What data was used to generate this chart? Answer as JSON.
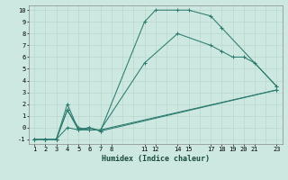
{
  "xlabel": "Humidex (Indice chaleur)",
  "bg_color": "#cce8e0",
  "grid_color": "#b8d8cc",
  "line_color": "#2d7a6e",
  "xlim": [
    0.5,
    23.5
  ],
  "ylim": [
    -1.4,
    10.4
  ],
  "xtick_positions": [
    1,
    2,
    3,
    4,
    5,
    6,
    7,
    8,
    11,
    12,
    14,
    15,
    17,
    18,
    19,
    20,
    21,
    23
  ],
  "xtick_labels": [
    "1",
    "2",
    "3",
    "4",
    "5",
    "6",
    "7",
    "8",
    "11",
    "12",
    "14",
    "15",
    "17",
    "18",
    "19",
    "20",
    "21",
    "23"
  ],
  "ytick_positions": [
    -1,
    0,
    1,
    2,
    3,
    4,
    5,
    6,
    7,
    8,
    9,
    10
  ],
  "ytick_labels": [
    "-1",
    "0",
    "1",
    "2",
    "3",
    "4",
    "5",
    "6",
    "7",
    "8",
    "9",
    "10"
  ],
  "grid_xticks": [
    1,
    2,
    3,
    4,
    5,
    6,
    7,
    8,
    9,
    10,
    11,
    12,
    13,
    14,
    15,
    16,
    17,
    18,
    19,
    20,
    21,
    22,
    23
  ],
  "line1_x": [
    1,
    2,
    3,
    4,
    5,
    6,
    7,
    11,
    12,
    14,
    15,
    17,
    18,
    23
  ],
  "line1_y": [
    -1,
    -1,
    -1,
    2,
    -0.2,
    0.0,
    -0.3,
    9.0,
    10.0,
    10.0,
    10.0,
    9.5,
    8.5,
    3.5
  ],
  "line2_x": [
    1,
    2,
    3,
    4,
    5,
    6,
    7,
    11,
    14,
    17,
    18,
    19,
    20,
    21,
    23
  ],
  "line2_y": [
    -1,
    -1,
    -1,
    1.5,
    0.0,
    -0.2,
    -0.2,
    5.5,
    8.0,
    7.0,
    6.5,
    6.0,
    6.0,
    5.5,
    3.5
  ],
  "line3_x": [
    1,
    2,
    3,
    4,
    5,
    6,
    7,
    23
  ],
  "line3_y": [
    -1,
    -1,
    -1,
    1.5,
    -0.2,
    0.0,
    -0.3,
    3.2
  ],
  "line4_x": [
    1,
    2,
    3,
    4,
    5,
    6,
    7,
    23
  ],
  "line4_y": [
    -1,
    -1,
    -1,
    0.0,
    -0.2,
    -0.2,
    -0.2,
    3.2
  ]
}
